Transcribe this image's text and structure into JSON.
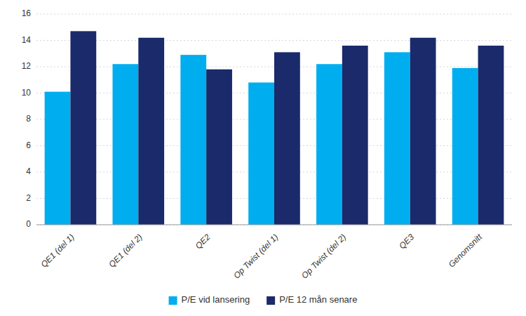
{
  "chart_data": {
    "type": "bar",
    "categories": [
      "QE1 (del 1)",
      "QE1 (del 2)",
      "QE2",
      "Op Twist (del 1)",
      "Op Twist (del 2)",
      "QE3",
      "Genomsnitt"
    ],
    "series": [
      {
        "name": "P/E vid lansering",
        "color": "#00AEEF",
        "values": [
          10.1,
          12.2,
          12.9,
          10.8,
          12.2,
          13.1,
          11.9
        ]
      },
      {
        "name": "P/E 12 mån senare",
        "color": "#1B2A6B",
        "values": [
          14.7,
          14.2,
          11.8,
          13.1,
          13.6,
          14.2,
          13.6
        ]
      }
    ],
    "ylim": [
      0,
      16
    ],
    "yticks": [
      0,
      2,
      4,
      6,
      8,
      10,
      12,
      14,
      16
    ],
    "grid": true,
    "legend": "bottom"
  }
}
